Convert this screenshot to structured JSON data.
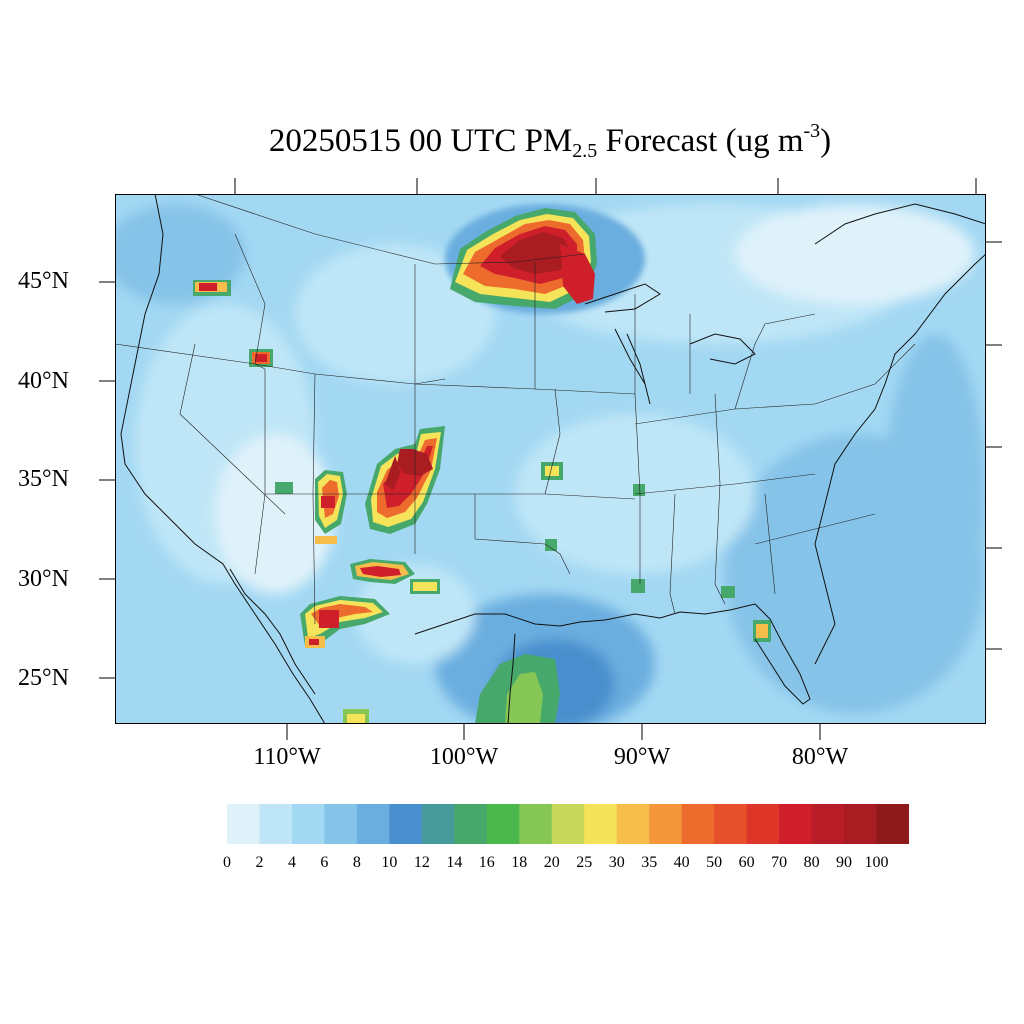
{
  "title": {
    "main": "20250515 00 UTC PM",
    "sub": "2.5",
    "tail": " Forecast (ug m",
    "sup": "-3",
    "close": ")"
  },
  "lat_labels": [
    "45°N",
    "40°N",
    "35°N",
    "30°N",
    "25°N"
  ],
  "lon_labels": [
    "110°W",
    "100°W",
    "90°W",
    "80°W"
  ],
  "colorbar": {
    "ticks": [
      "0",
      "2",
      "4",
      "6",
      "8",
      "10",
      "12",
      "14",
      "16",
      "18",
      "20",
      "25",
      "30",
      "35",
      "40",
      "50",
      "60",
      "70",
      "80",
      "90",
      "100"
    ],
    "colors": [
      "#dff2fa",
      "#bfe6f7",
      "#a3d8f3",
      "#86c3e8",
      "#6aaedf",
      "#4a8fce",
      "#479a9a",
      "#47a86b",
      "#4ab84a",
      "#86c655",
      "#c6d75a",
      "#f5e35a",
      "#f7bd4b",
      "#f3973a",
      "#ee6b2e",
      "#e6512b",
      "#de3529",
      "#cf1f2a",
      "#b91d27",
      "#a91c22",
      "#8f1a1b"
    ]
  },
  "map": {
    "background_color": "#a3d8f3",
    "plumes": [
      {
        "label": "north-dakota-minnesota plume"
      },
      {
        "label": "new-mexico plume"
      },
      {
        "label": "arizona plume"
      },
      {
        "label": "chihuahua plume"
      },
      {
        "label": "idaho-montana plume"
      },
      {
        "label": "wyoming plume"
      },
      {
        "label": "florida plume"
      },
      {
        "label": "gulf coast plume"
      }
    ]
  }
}
